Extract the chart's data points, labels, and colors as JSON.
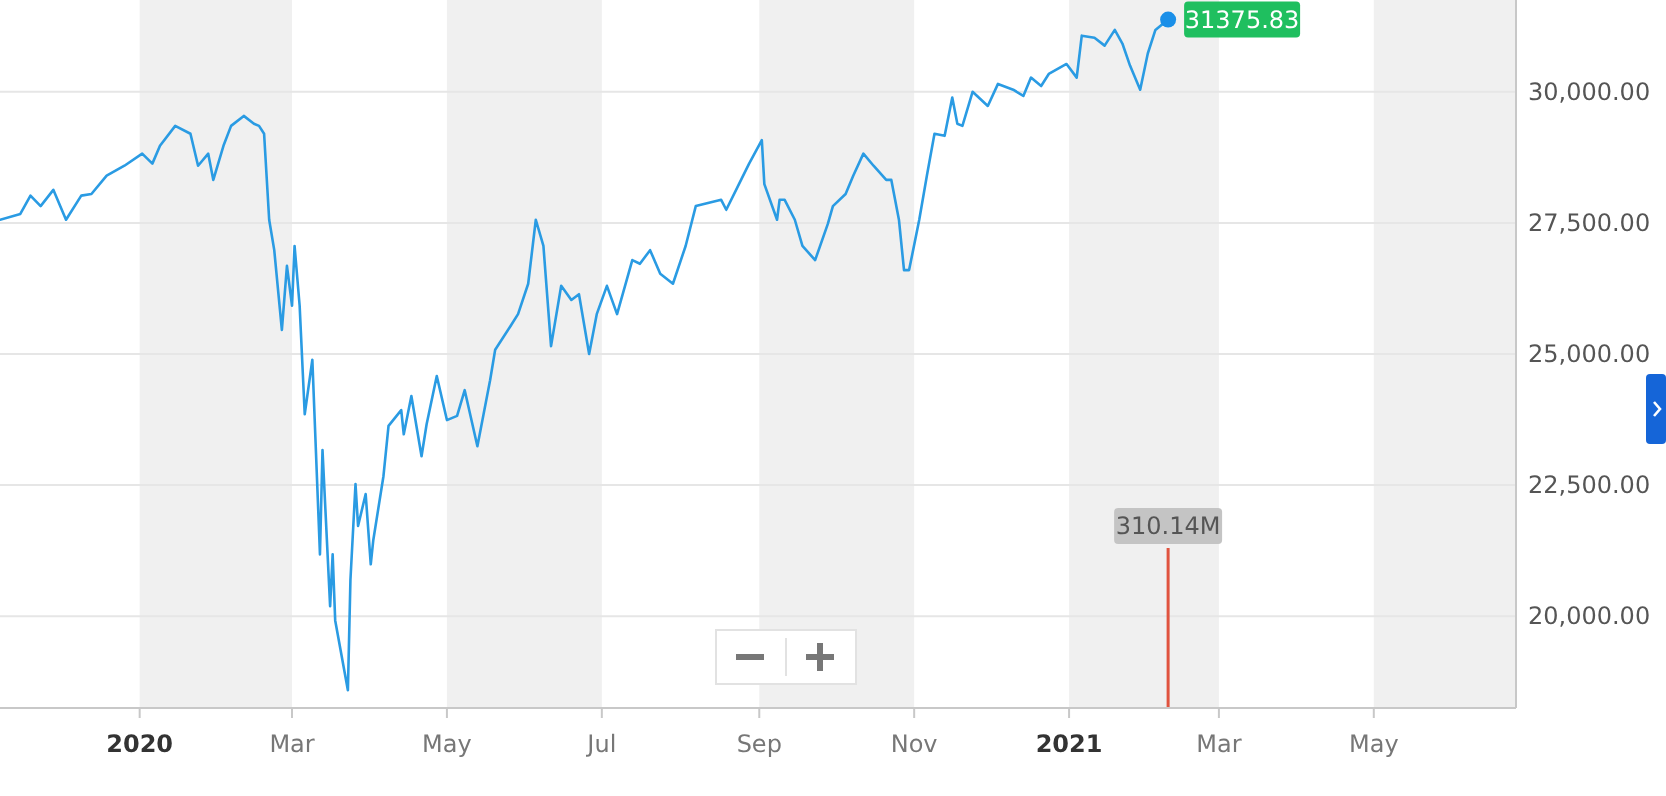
{
  "chart_data": {
    "type": "line",
    "xlim": [
      "2019-11-07",
      "2021-06-26"
    ],
    "xticks": [
      {
        "value": "2020-01-01",
        "label": "2020"
      },
      {
        "value": "2020-03-01",
        "label": "Mar"
      },
      {
        "value": "2020-05-01",
        "label": "May"
      },
      {
        "value": "2020-07-01",
        "label": "Jul"
      },
      {
        "value": "2020-09-01",
        "label": "Sep"
      },
      {
        "value": "2020-11-01",
        "label": "Nov"
      },
      {
        "value": "2021-01-01",
        "label": "2021"
      },
      {
        "value": "2021-03-01",
        "label": "Mar"
      },
      {
        "value": "2021-05-01",
        "label": "May"
      }
    ],
    "ylim": [
      18250,
      31750
    ],
    "yticks": [
      {
        "value": 20000,
        "label": "20,000.00"
      },
      {
        "value": 22500,
        "label": "22,500.00"
      },
      {
        "value": 25000,
        "label": "25,000.00"
      },
      {
        "value": 27500,
        "label": "27,500.00"
      },
      {
        "value": 30000,
        "label": "30,000.00"
      }
    ],
    "grid": "y",
    "bands": [
      {
        "axis": "x",
        "from": "2020-01-01",
        "to": "2020-03-01",
        "color": "#f0f0f0"
      },
      {
        "axis": "x",
        "from": "2020-05-01",
        "to": "2020-07-01",
        "color": "#f0f0f0"
      },
      {
        "axis": "x",
        "from": "2020-09-01",
        "to": "2020-11-01",
        "color": "#f0f0f0"
      },
      {
        "axis": "x",
        "from": "2021-01-01",
        "to": "2021-03-01",
        "color": "#f0f0f0"
      },
      {
        "axis": "x",
        "from": "2021-05-01",
        "to": "2021-06-26",
        "color": "#f0f0f0"
      }
    ],
    "annotations": [
      {
        "text": "31375.83",
        "x": "2021-02-09",
        "y": 31375.83
      }
    ],
    "series": [
      {
        "color": "#2a9be3",
        "x": [
          "2019-11-07",
          "2019-11-15",
          "2019-11-19",
          "2019-11-23",
          "2019-11-28",
          "2019-12-03",
          "2019-12-09",
          "2019-12-13",
          "2019-12-19",
          "2019-12-26",
          "2020-01-02",
          "2020-01-06",
          "2020-01-09",
          "2020-01-15",
          "2020-01-21",
          "2020-01-24",
          "2020-01-28",
          "2020-01-30",
          "2020-02-03",
          "2020-02-06",
          "2020-02-11",
          "2020-02-15",
          "2020-02-17",
          "2020-02-19",
          "2020-02-21",
          "2020-02-23",
          "2020-02-26",
          "2020-02-28",
          "2020-03-01",
          "2020-03-02",
          "2020-03-04",
          "2020-03-06",
          "2020-03-09",
          "2020-03-12",
          "2020-03-13",
          "2020-03-16",
          "2020-03-17",
          "2020-03-18",
          "2020-03-23",
          "2020-03-24",
          "2020-03-26",
          "2020-03-27",
          "2020-03-30",
          "2020-04-01",
          "2020-04-02",
          "2020-04-06",
          "2020-04-08",
          "2020-04-13",
          "2020-04-14",
          "2020-04-17",
          "2020-04-21",
          "2020-04-23",
          "2020-04-27",
          "2020-05-01",
          "2020-05-05",
          "2020-05-08",
          "2020-05-13",
          "2020-05-18",
          "2020-05-20",
          "2020-05-26",
          "2020-05-29",
          "2020-06-02",
          "2020-06-05",
          "2020-06-08",
          "2020-06-11",
          "2020-06-15",
          "2020-06-19",
          "2020-06-22",
          "2020-06-26",
          "2020-06-29",
          "2020-07-03",
          "2020-07-07",
          "2020-07-13",
          "2020-07-16",
          "2020-07-20",
          "2020-07-24",
          "2020-07-29",
          "2020-08-03",
          "2020-08-07",
          "2020-08-17",
          "2020-08-19",
          "2020-08-24",
          "2020-08-28",
          "2020-09-02",
          "2020-09-03",
          "2020-09-08",
          "2020-09-09",
          "2020-09-11",
          "2020-09-15",
          "2020-09-18",
          "2020-09-23",
          "2020-09-28",
          "2020-09-30",
          "2020-10-05",
          "2020-10-08",
          "2020-10-12",
          "2020-10-16",
          "2020-10-21",
          "2020-10-23",
          "2020-10-26",
          "2020-10-28",
          "2020-10-30",
          "2020-11-03",
          "2020-11-06",
          "2020-11-09",
          "2020-11-13",
          "2020-11-16",
          "2020-11-18",
          "2020-11-20",
          "2020-11-24",
          "2020-11-30",
          "2020-12-04",
          "2020-12-10",
          "2020-12-14",
          "2020-12-17",
          "2020-12-21",
          "2020-12-24",
          "2020-12-31",
          "2021-01-04",
          "2021-01-06",
          "2021-01-11",
          "2021-01-15",
          "2021-01-19",
          "2021-01-22",
          "2021-01-25",
          "2021-01-29",
          "2021-02-01",
          "2021-02-04",
          "2021-02-09"
        ],
        "values": [
          27560,
          27670,
          28020,
          27820,
          28130,
          27560,
          28020,
          28050,
          28400,
          28590,
          28820,
          28630,
          28970,
          29350,
          29200,
          28590,
          28820,
          28320,
          28970,
          29350,
          29540,
          29390,
          29350,
          29200,
          27560,
          26980,
          25460,
          26680,
          25920,
          27060,
          25920,
          23850,
          24890,
          21180,
          23170,
          20190,
          21180,
          19920,
          18590,
          20690,
          22520,
          21720,
          22330,
          20990,
          21450,
          22670,
          23630,
          23930,
          23470,
          24200,
          23050,
          23660,
          24580,
          23740,
          23820,
          24310,
          23240,
          24500,
          25080,
          25530,
          25760,
          26340,
          27560,
          27060,
          25150,
          26300,
          26030,
          26140,
          25000,
          25760,
          26300,
          25760,
          26790,
          26720,
          26980,
          26530,
          26340,
          27060,
          27820,
          27940,
          27750,
          28240,
          28630,
          29080,
          28240,
          27560,
          27940,
          27940,
          27560,
          27060,
          26790,
          27480,
          27820,
          28050,
          28400,
          28820,
          28590,
          28320,
          28320,
          27560,
          26600,
          26600,
          27560,
          28400,
          29200,
          29160,
          29890,
          29390,
          29350,
          30000,
          29730,
          30150,
          30040,
          29920,
          30270,
          30110,
          30340,
          30530,
          30270,
          31070,
          31030,
          30880,
          31180,
          30920,
          30500,
          30040,
          30730,
          31180,
          31380
        ]
      },
      {
        "type": "bar",
        "axis": "y2",
        "color": "#e0533f",
        "x": [
          "2021-02-09"
        ],
        "values": [
          310.14
        ],
        "value_labels": [
          "310.14M"
        ]
      }
    ]
  }
}
